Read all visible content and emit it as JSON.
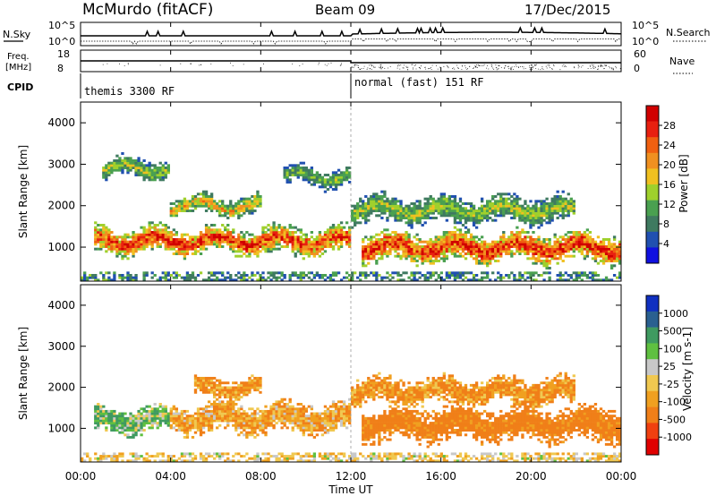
{
  "header": {
    "station": "McMurdo (fitACF)",
    "beam": "Beam 09",
    "date": "17/Dec/2015"
  },
  "top_panels": {
    "nsky_label": "N.Sky",
    "nsearch_label": "N.Search",
    "nsky_ticks": [
      "10^5",
      "10^0"
    ],
    "nsky_right_ticks": [
      "10^5",
      "10^0"
    ],
    "freq_label_1": "Freq.",
    "freq_label_2": "[MHz]",
    "freq_ticks": [
      "18",
      "8"
    ],
    "nave_label": "Nave",
    "nave_ticks": [
      "60",
      "0"
    ],
    "cpid_label": "CPID",
    "cpid_segments": [
      {
        "label": "themis 3300 RF",
        "start_hour": 0,
        "end_hour": 12
      },
      {
        "label": "normal (fast) 151 RF",
        "start_hour": 12,
        "end_hour": 24
      }
    ]
  },
  "chart_data": [
    {
      "type": "heatmap",
      "name": "power",
      "ylabel": "Slant Range [km]",
      "xlabel": "Time UT",
      "xlim": [
        0,
        24
      ],
      "ylim": [
        180,
        4500
      ],
      "x_ticks": [
        "00:00",
        "04:00",
        "08:00",
        "12:00",
        "16:00",
        "20:00",
        "00:00"
      ],
      "y_ticks": [
        "1000",
        "2000",
        "3000",
        "4000"
      ],
      "colorbar": {
        "label": "Power [dB]",
        "ticks": [
          "28",
          "24",
          "20",
          "16",
          "12",
          "8",
          "4"
        ],
        "range": [
          0,
          30
        ]
      },
      "bands": [
        {
          "from_hour": 0.6,
          "to_hour": 12,
          "center_km": 1150,
          "spread_km": 350,
          "peak_db": 26
        },
        {
          "from_hour": 12.5,
          "to_hour": 24,
          "center_km": 1000,
          "spread_km": 400,
          "peak_db": 27
        },
        {
          "from_hour": 1,
          "to_hour": 4,
          "center_km": 2900,
          "spread_km": 250,
          "peak_db": 14
        },
        {
          "from_hour": 4,
          "to_hour": 8,
          "center_km": 2000,
          "spread_km": 250,
          "peak_db": 18
        },
        {
          "from_hour": 9,
          "to_hour": 12,
          "center_km": 2700,
          "spread_km": 250,
          "peak_db": 12
        },
        {
          "from_hour": 12,
          "to_hour": 22,
          "center_km": 1900,
          "spread_km": 350,
          "peak_db": 14
        }
      ]
    },
    {
      "type": "heatmap",
      "name": "velocity",
      "ylabel": "Slant Range [km]",
      "xlabel": "Time UT",
      "xlim": [
        0,
        24
      ],
      "ylim": [
        180,
        4500
      ],
      "x_ticks": [
        "00:00",
        "04:00",
        "08:00",
        "12:00",
        "16:00",
        "20:00",
        "00:00"
      ],
      "y_ticks": [
        "1000",
        "2000",
        "3000",
        "4000"
      ],
      "colorbar": {
        "label": "Velocity [m s-1]",
        "ticks": [
          "1000",
          "500",
          "100",
          "25",
          "-25",
          "-100",
          "-500",
          "-1000"
        ],
        "range": [
          -1200,
          1200
        ]
      },
      "bands": [
        {
          "from_hour": 0.6,
          "to_hour": 4,
          "center_km": 1200,
          "spread_km": 350,
          "mean_vel": 80
        },
        {
          "from_hour": 4,
          "to_hour": 12,
          "center_km": 1250,
          "spread_km": 400,
          "mean_vel": -150
        },
        {
          "from_hour": 5,
          "to_hour": 8,
          "center_km": 2000,
          "spread_km": 250,
          "mean_vel": -200
        },
        {
          "from_hour": 12.5,
          "to_hour": 24,
          "center_km": 1100,
          "spread_km": 450,
          "mean_vel": -300
        },
        {
          "from_hour": 12,
          "to_hour": 22,
          "center_km": 1900,
          "spread_km": 350,
          "mean_vel": -200
        }
      ]
    }
  ],
  "colors": {
    "power_scale": [
      "#1010e0",
      "#2050b0",
      "#3f7a60",
      "#4aa050",
      "#9fd02c",
      "#f0c020",
      "#f09020",
      "#f06010",
      "#e82010",
      "#d00000"
    ],
    "velocity_scale": [
      "#e00000",
      "#f04010",
      "#f07f18",
      "#f0a020",
      "#f0c850",
      "#c8c8c8",
      "#5fc040",
      "#3f9a60",
      "#2a6090",
      "#1030c0"
    ]
  }
}
